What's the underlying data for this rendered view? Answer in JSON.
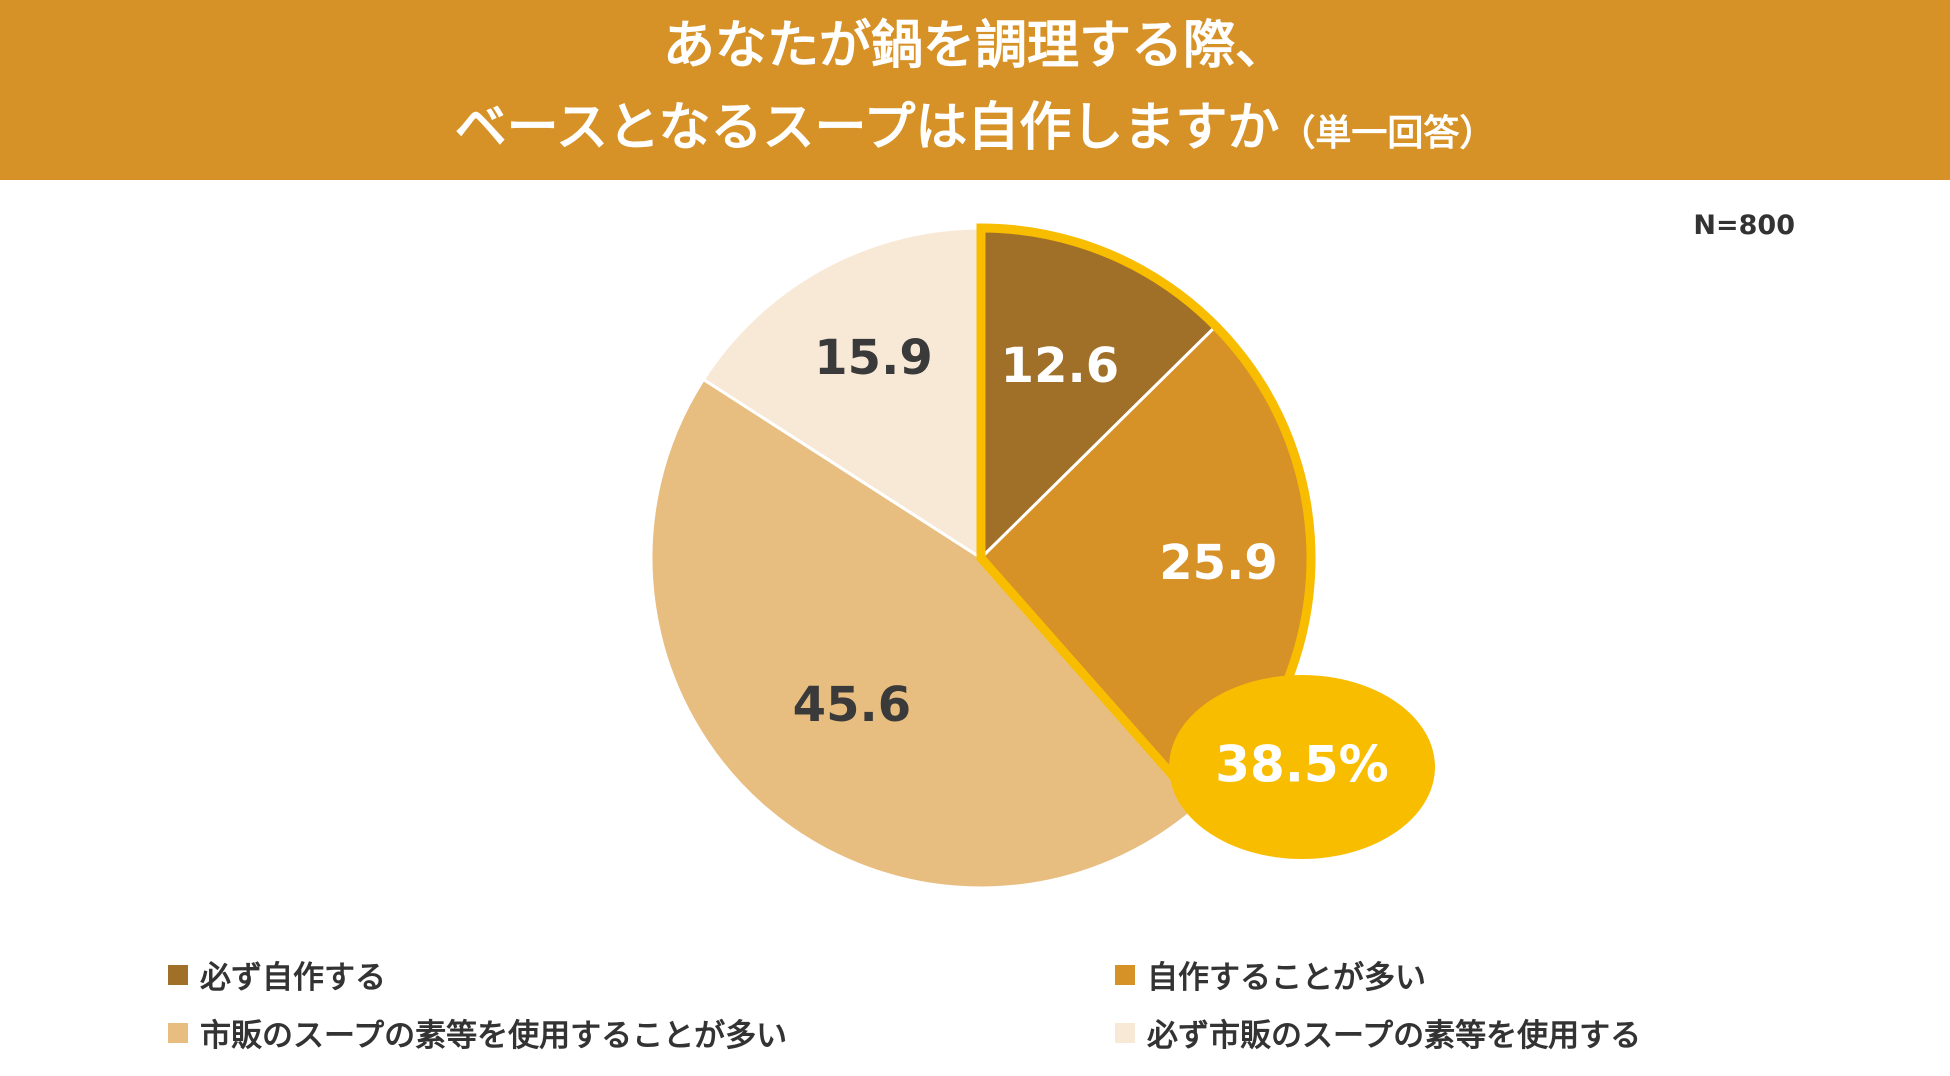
{
  "header": {
    "title_line1": "あなたが鍋を調理する際、",
    "title_line2": "ベースとなるスープは自作しますか",
    "title_note": "（単一回答）"
  },
  "n_label": "N=800",
  "colors": {
    "header_bg": "#d69127",
    "highlight": "#f9bd00"
  },
  "chart_data": {
    "type": "pie",
    "title": "あなたが鍋を調理する際、ベースとなるスープは自作しますか（単一回答）",
    "n": "N=800",
    "slices": [
      {
        "label": "必ず自作する",
        "value": 12.6,
        "display": "12.6",
        "color": "#a07028",
        "text_color": "#ffffff"
      },
      {
        "label": "自作することが多い",
        "value": 25.9,
        "display": "25.9",
        "color": "#d69127",
        "text_color": "#ffffff"
      },
      {
        "label": "市販のスープの素等を使用することが多い",
        "value": 45.6,
        "display": "45.6",
        "color": "#e8bd80",
        "text_color": "#3a3a3a"
      },
      {
        "label": "必ず市販のスープの素等を使用する",
        "value": 15.9,
        "display": "15.9",
        "color": "#f8e9d7",
        "text_color": "#3a3a3a"
      }
    ],
    "highlight": {
      "slices": [
        "必ず自作する",
        "自作することが多い"
      ],
      "total_label": "38.5%",
      "total_value": 38.5
    },
    "legend_placement": "bottom"
  }
}
